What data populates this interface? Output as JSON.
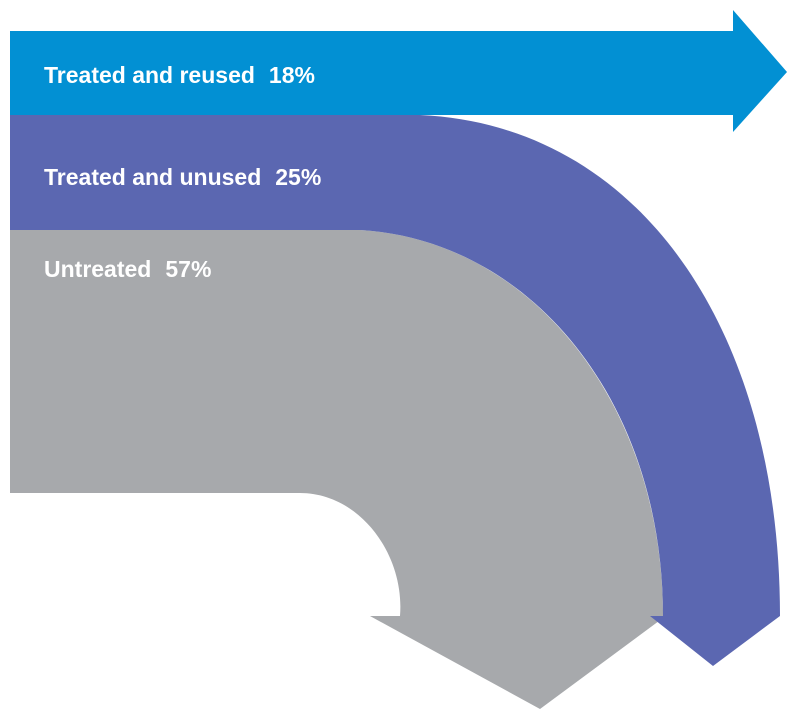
{
  "chart_data": {
    "type": "sankey",
    "title": "",
    "unit": "%",
    "flows": [
      {
        "name": "Treated and reused",
        "value": 18,
        "value_label": "18%",
        "color": "#0290D3"
      },
      {
        "name": "Treated and unused",
        "value": 25,
        "value_label": "25%",
        "color": "#5B67B1"
      },
      {
        "name": "Untreated",
        "value": 57,
        "value_label": "57%",
        "color": "#A7A9AC"
      }
    ]
  }
}
